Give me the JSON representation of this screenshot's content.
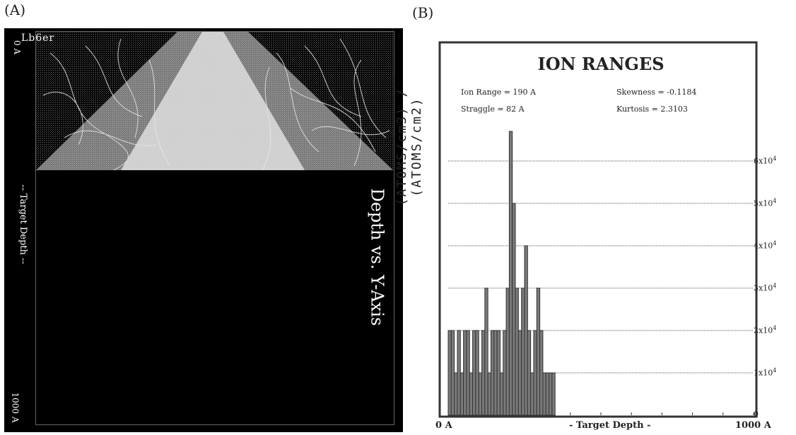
{
  "panel_a": {
    "letter": "(A)",
    "top_label": "Lb6er",
    "zero_label": "0 A",
    "axis_label": "-- Target Depth --",
    "end_label": "1000 A",
    "title": "Depth vs. Y-Axis"
  },
  "panel_b": {
    "letter": "(B)",
    "y_axis_label": "(ATOMS/cm3) / (ATOMS/cm2)",
    "stats": {
      "ion_range": "Ion Range  =  190 A",
      "straggle": "Straggle      =  82 A",
      "skewness": "Skewness    = -0.1184",
      "kurtosis": "Kurtosis     = 2.3103"
    },
    "x_start": "0 A",
    "x_label": "- Target Depth -",
    "x_end": "1000 A"
  },
  "chart_data": {
    "type": "bar",
    "title": "ION RANGES",
    "xlabel": "- Target Depth -",
    "ylabel": "(ATOMS/cm3) / (ATOMS/cm2)",
    "xlim": [
      0,
      1000
    ],
    "ylim": [
      0,
      70000
    ],
    "y_ticks": [
      {
        "value": 0,
        "label": "0",
        "exp": ""
      },
      {
        "value": 10000,
        "label": "1x10",
        "exp": "4"
      },
      {
        "value": 20000,
        "label": "2x10",
        "exp": "4"
      },
      {
        "value": 30000,
        "label": "3x10",
        "exp": "4"
      },
      {
        "value": 40000,
        "label": "4x10",
        "exp": "4"
      },
      {
        "value": 50000,
        "label": "5x10",
        "exp": "4"
      },
      {
        "value": 60000,
        "label": "6x10",
        "exp": "4"
      }
    ],
    "grid": true,
    "bins": [
      {
        "x": 0,
        "w": 10,
        "value": 20000
      },
      {
        "x": 10,
        "w": 10,
        "value": 20000
      },
      {
        "x": 20,
        "w": 10,
        "value": 10000
      },
      {
        "x": 30,
        "w": 10,
        "value": 20000
      },
      {
        "x": 40,
        "w": 10,
        "value": 10000
      },
      {
        "x": 50,
        "w": 10,
        "value": 20000
      },
      {
        "x": 60,
        "w": 10,
        "value": 20000
      },
      {
        "x": 70,
        "w": 10,
        "value": 10000
      },
      {
        "x": 80,
        "w": 10,
        "value": 20000
      },
      {
        "x": 90,
        "w": 10,
        "value": 20000
      },
      {
        "x": 100,
        "w": 10,
        "value": 10000
      },
      {
        "x": 110,
        "w": 10,
        "value": 20000
      },
      {
        "x": 120,
        "w": 10,
        "value": 30000
      },
      {
        "x": 130,
        "w": 10,
        "value": 10000
      },
      {
        "x": 140,
        "w": 10,
        "value": 20000
      },
      {
        "x": 150,
        "w": 10,
        "value": 20000
      },
      {
        "x": 160,
        "w": 10,
        "value": 20000
      },
      {
        "x": 170,
        "w": 10,
        "value": 10000
      },
      {
        "x": 180,
        "w": 10,
        "value": 20000
      },
      {
        "x": 190,
        "w": 10,
        "value": 30000
      },
      {
        "x": 200,
        "w": 10,
        "value": 67000
      },
      {
        "x": 210,
        "w": 10,
        "value": 50000
      },
      {
        "x": 220,
        "w": 10,
        "value": 30000
      },
      {
        "x": 230,
        "w": 10,
        "value": 20000
      },
      {
        "x": 240,
        "w": 10,
        "value": 30000
      },
      {
        "x": 250,
        "w": 10,
        "value": 40000
      },
      {
        "x": 260,
        "w": 10,
        "value": 20000
      },
      {
        "x": 270,
        "w": 10,
        "value": 10000
      },
      {
        "x": 280,
        "w": 10,
        "value": 20000
      },
      {
        "x": 290,
        "w": 10,
        "value": 30000
      },
      {
        "x": 300,
        "w": 10,
        "value": 20000
      },
      {
        "x": 310,
        "w": 10,
        "value": 10000
      },
      {
        "x": 320,
        "w": 10,
        "value": 10000
      },
      {
        "x": 330,
        "w": 10,
        "value": 10000
      },
      {
        "x": 340,
        "w": 10,
        "value": 10000
      }
    ]
  },
  "colors": {
    "bar_fill": "#7a7a7a",
    "bar_stroke": "#333333",
    "grid": "#555555",
    "panel_a_background": "#000000"
  }
}
